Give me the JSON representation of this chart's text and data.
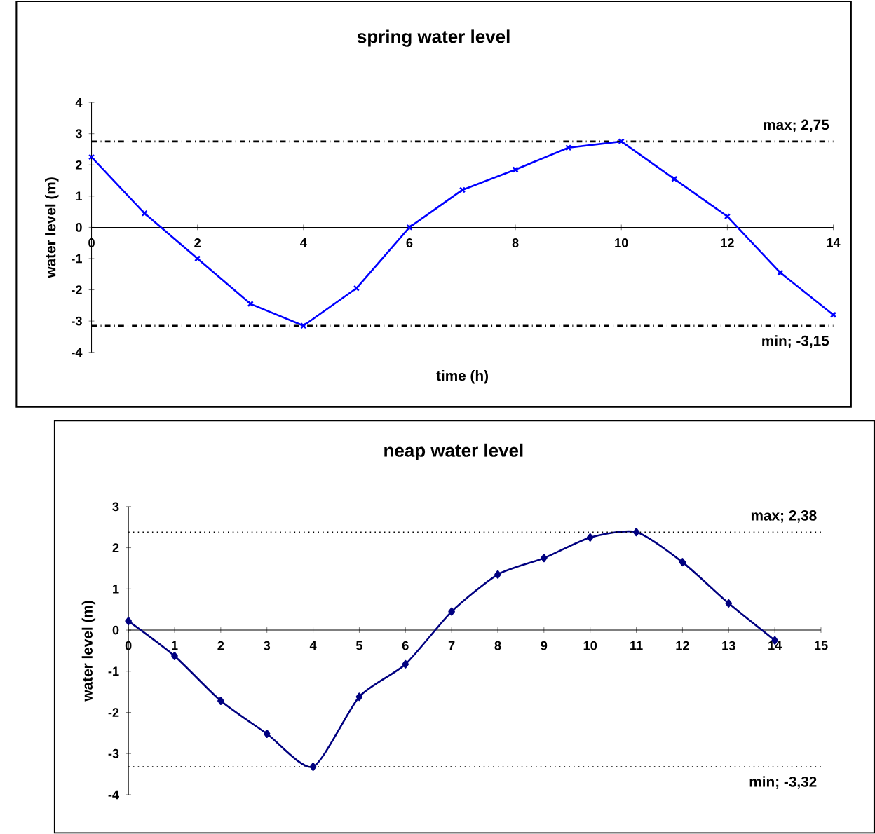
{
  "chart_data": [
    {
      "type": "line",
      "title": "spring water level",
      "xlabel": "time (h)",
      "ylabel": "water level (m)",
      "x": [
        0,
        1,
        2,
        3,
        4,
        5,
        6,
        7,
        8,
        9,
        10,
        11,
        12,
        13,
        14
      ],
      "series": [
        {
          "color": "#0000ff",
          "values": [
            2.25,
            0.45,
            -1.0,
            -2.45,
            -3.15,
            -1.95,
            0.0,
            1.2,
            1.85,
            2.55,
            2.75,
            1.55,
            0.35,
            -1.45,
            -2.8
          ]
        }
      ],
      "xlim": [
        0,
        14
      ],
      "xticks": [
        0,
        2,
        4,
        6,
        8,
        10,
        12,
        14
      ],
      "ylim": [
        -4,
        4
      ],
      "yticks": [
        -4,
        -3,
        -2,
        -1,
        0,
        1,
        2,
        3,
        4
      ],
      "marker": "cross",
      "line_style": "solid",
      "grid": false,
      "ref_lines": [
        {
          "axis": "y",
          "value": 2.75,
          "label": "max; 2,75",
          "color": "#000000",
          "line_style": "dashdot"
        },
        {
          "axis": "y",
          "value": -3.15,
          "label": "min; -3,15",
          "color": "#000000",
          "line_style": "dashdot"
        }
      ]
    },
    {
      "type": "line",
      "title": "neap water level",
      "ylabel": "water level (m)",
      "x": [
        0,
        1,
        2,
        3,
        4,
        5,
        6,
        7,
        8,
        9,
        10,
        11,
        12,
        13,
        14
      ],
      "series": [
        {
          "color": "#000080",
          "values": [
            0.22,
            -0.63,
            -1.72,
            -2.52,
            -3.32,
            -1.62,
            -0.83,
            0.45,
            1.35,
            1.75,
            2.25,
            2.38,
            1.65,
            0.65,
            -0.25
          ]
        }
      ],
      "xlim": [
        0,
        15
      ],
      "xticks": [
        0,
        1,
        2,
        3,
        4,
        5,
        6,
        7,
        8,
        9,
        10,
        11,
        12,
        13,
        14,
        15
      ],
      "ylim": [
        -4,
        3
      ],
      "yticks": [
        -4,
        -3,
        -2,
        -1,
        0,
        1,
        2,
        3
      ],
      "marker": "diamond",
      "line_style": "solid",
      "grid": false,
      "ref_lines": [
        {
          "axis": "y",
          "value": 2.38,
          "label": "max; 2,38",
          "color": "#000000",
          "line_style": "dotted"
        },
        {
          "axis": "y",
          "value": -3.32,
          "label": "min; -3,32",
          "color": "#000000",
          "line_style": "dotted"
        }
      ]
    }
  ]
}
